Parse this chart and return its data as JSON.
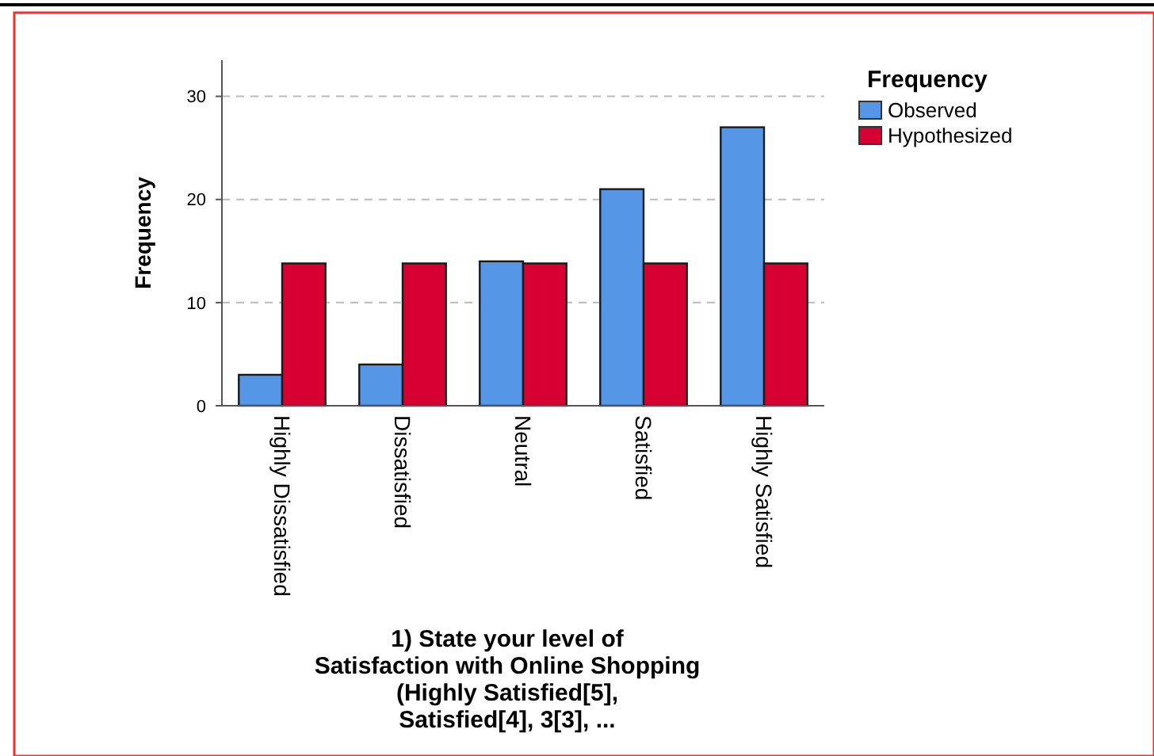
{
  "chart_data": {
    "type": "bar",
    "xlabel": "1) State your level of Satisfaction with Online Shopping (Highly Satisfied[5], Satisfied[4], 3[3], ...",
    "ylabel": "Frequency",
    "legend_title": "Frequency",
    "categories": [
      "Highly Dissatisfied",
      "Dissatisfied",
      "Neutral",
      "Satisfied",
      "Highly Satisfied"
    ],
    "series": [
      {
        "name": "Observed",
        "color": "#5596e6",
        "values": [
          3,
          4,
          14,
          21,
          27
        ]
      },
      {
        "name": "Hypothesized",
        "color": "#d60032",
        "values": [
          13.8,
          13.8,
          13.8,
          13.8,
          13.8
        ]
      }
    ],
    "ylim": [
      0,
      33.5
    ],
    "yticks": [
      0,
      10,
      20,
      30
    ],
    "grid": "y",
    "legend": "top right"
  }
}
